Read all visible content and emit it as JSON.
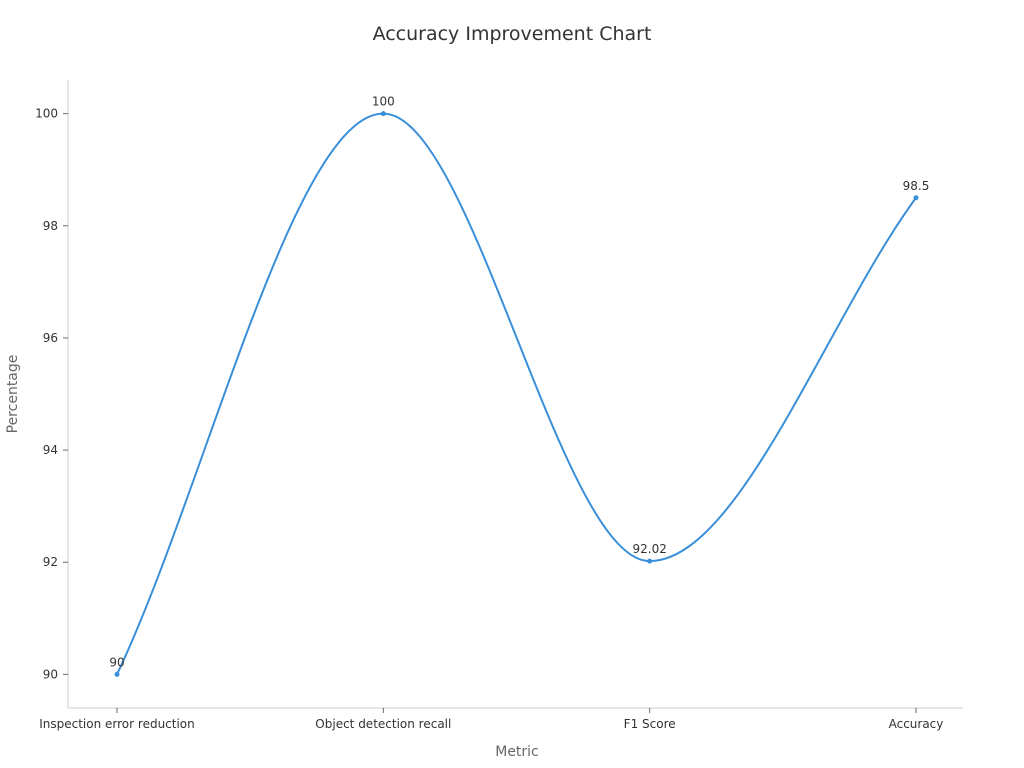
{
  "chart_data": {
    "type": "line",
    "title": "Accuracy Improvement Chart",
    "xlabel": "Metric",
    "ylabel": "Percentage",
    "categories": [
      "Inspection error reduction",
      "Object detection recall",
      "F1 Score",
      "Accuracy"
    ],
    "series": [
      {
        "values": [
          90,
          100,
          92.02,
          98.5
        ],
        "data_labels": [
          "90",
          "100",
          "92.02",
          "98.5"
        ]
      }
    ],
    "ylim": [
      89.4,
      100.6
    ],
    "yticks": [
      90,
      92,
      94,
      96,
      98,
      100
    ],
    "smooth": true,
    "grid": false,
    "legend": "none",
    "colors": {
      "series": "#3a8fd9"
    }
  }
}
